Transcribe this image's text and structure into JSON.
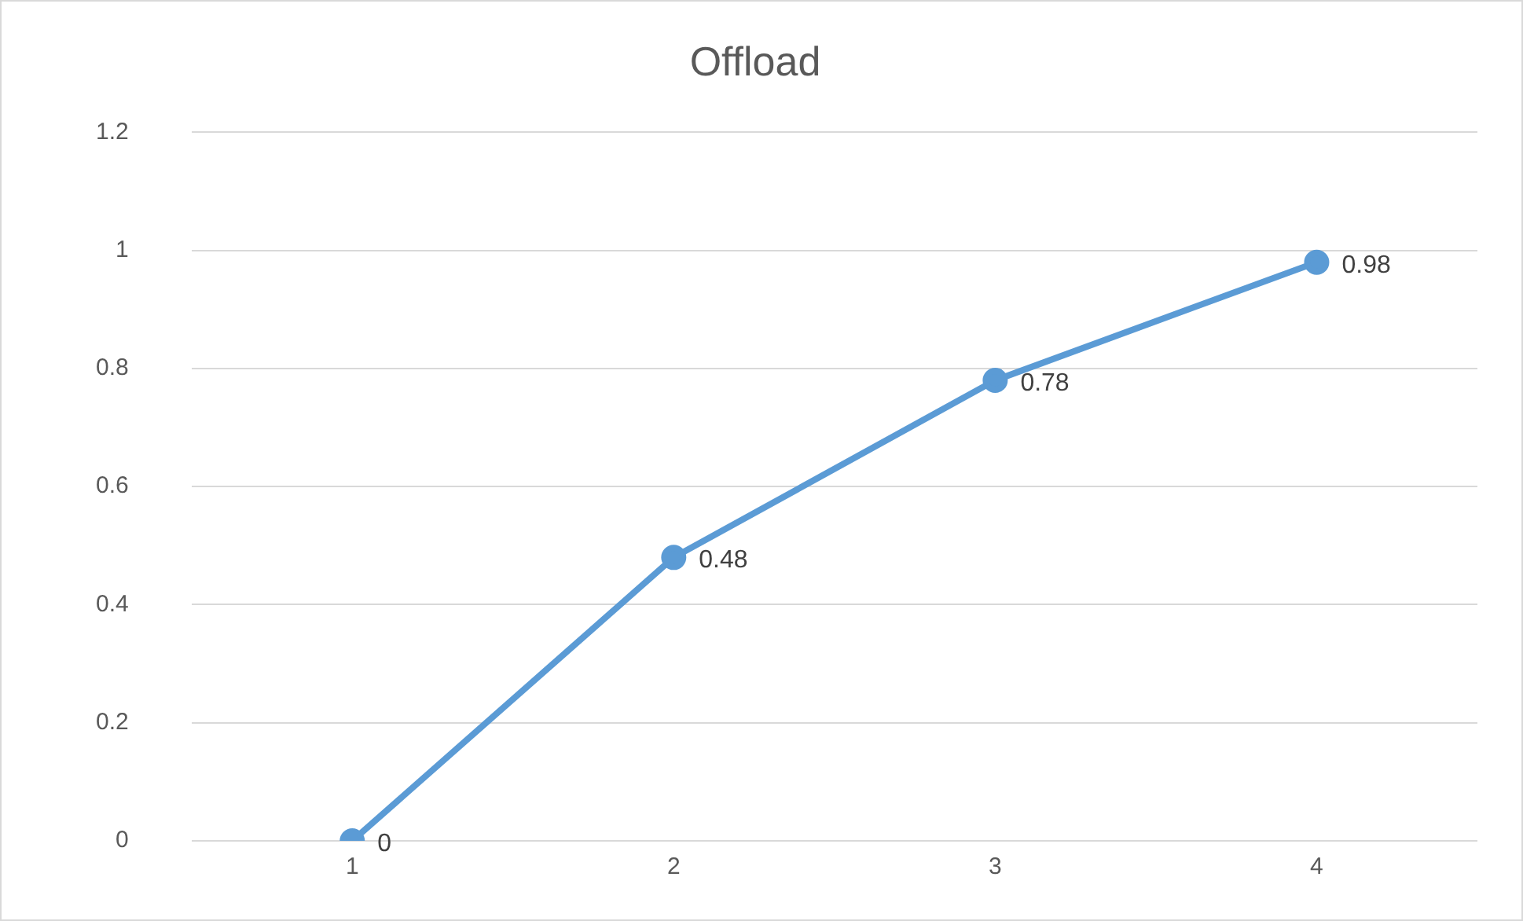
{
  "chart_data": {
    "type": "line",
    "title": "Offload",
    "categories": [
      "1",
      "2",
      "3",
      "4"
    ],
    "series": [
      {
        "color": "#5b9bd5",
        "values": [
          0,
          0.48,
          0.78,
          0.98
        ]
      }
    ],
    "ylim": [
      0,
      1.2
    ],
    "yticks": [
      0,
      0.2,
      0.4,
      0.6,
      0.8,
      1,
      1.2
    ],
    "grid": "y",
    "legend": false,
    "marker": "circle",
    "line_style": "solid",
    "data_labels": true
  }
}
